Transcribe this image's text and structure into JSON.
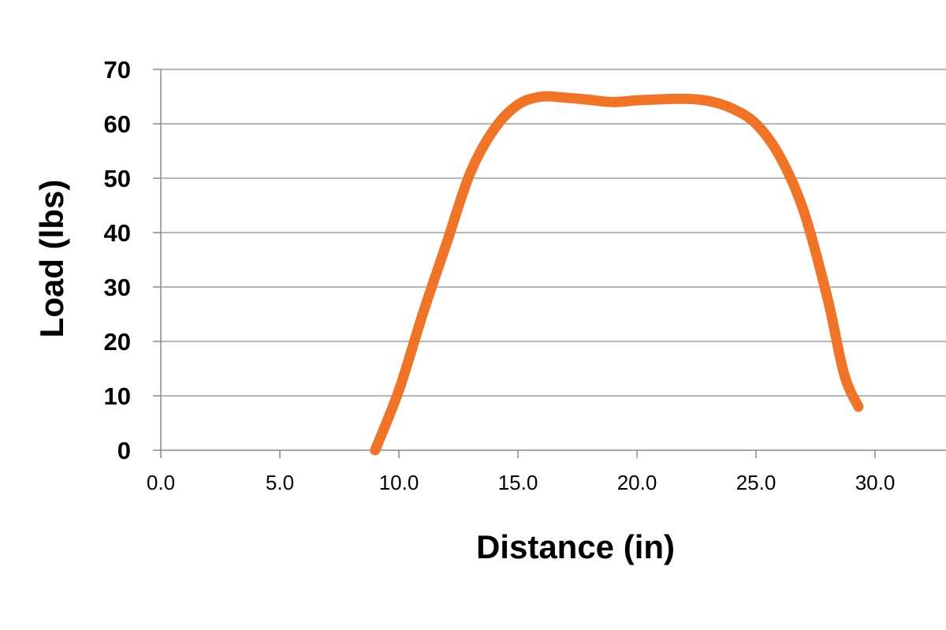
{
  "chart_data": {
    "type": "line",
    "title": "",
    "xlabel": "Distance (in)",
    "ylabel": "Load (lbs)",
    "xlim": [
      0,
      33
    ],
    "ylim": [
      0,
      70
    ],
    "x_ticks": [
      "0.0",
      "5.0",
      "10.0",
      "15.0",
      "20.0",
      "25.0",
      "30.0"
    ],
    "y_ticks": [
      "0",
      "10",
      "20",
      "30",
      "40",
      "50",
      "60",
      "70"
    ],
    "grid": "horizontal",
    "legend": "none",
    "series": [
      {
        "color": "#f07427",
        "x": [
          9.0,
          10.0,
          11.0,
          12.0,
          13.0,
          14.0,
          15.0,
          16.0,
          17.0,
          18.0,
          19.0,
          20.0,
          21.0,
          22.0,
          23.0,
          24.0,
          25.0,
          26.0,
          27.0,
          28.0,
          28.7,
          29.3
        ],
        "y": [
          0,
          11,
          25,
          38,
          51,
          59,
          63.5,
          65,
          64.8,
          64.4,
          64,
          64.3,
          64.5,
          64.6,
          64.2,
          62.8,
          60,
          54,
          44,
          28,
          14,
          8
        ]
      }
    ]
  }
}
